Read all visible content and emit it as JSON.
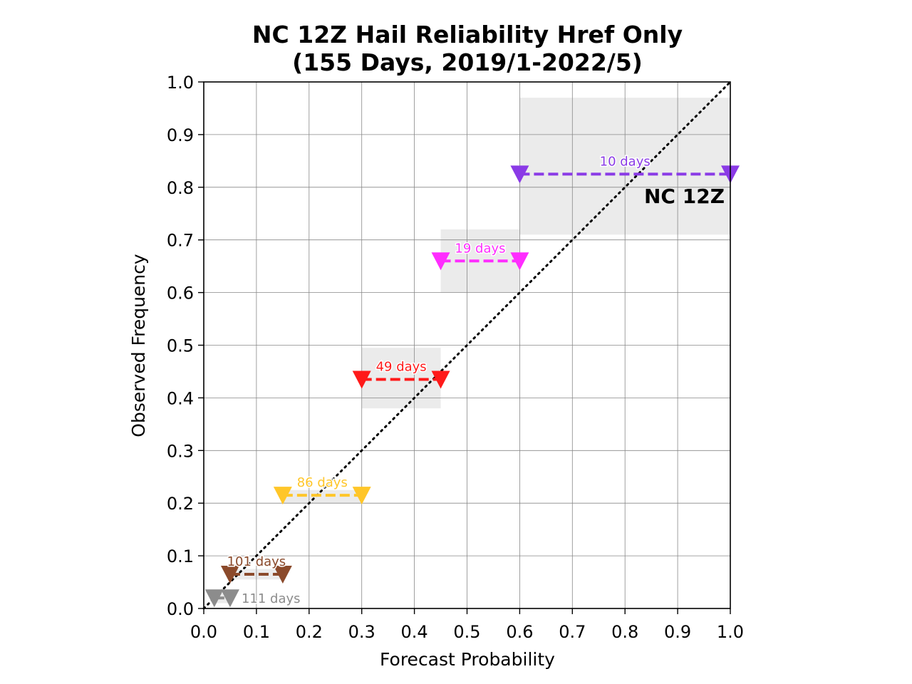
{
  "chart_data": {
    "type": "line",
    "title": "NC 12Z Hail Reliability Href Only",
    "subtitle": "(155 Days, 2019/1-2022/5)",
    "xlabel": "Forecast Probability",
    "ylabel": "Observed Frequency",
    "xlim": [
      0,
      1
    ],
    "ylim": [
      0,
      1
    ],
    "xticks": [
      "0.0",
      "0.1",
      "0.2",
      "0.3",
      "0.4",
      "0.5",
      "0.6",
      "0.7",
      "0.8",
      "0.9",
      "1.0"
    ],
    "yticks": [
      "0.0",
      "0.1",
      "0.2",
      "0.3",
      "0.4",
      "0.5",
      "0.6",
      "0.7",
      "0.8",
      "0.9",
      "1.0"
    ],
    "grid": true,
    "region_label": "NC 12Z",
    "reference_line": {
      "x": [
        0,
        1
      ],
      "y": [
        0,
        1
      ],
      "style": "dotted",
      "color": "#000000"
    },
    "bins": [
      {
        "x_start": 0.02,
        "x_end": 0.05,
        "y": 0.02,
        "ci_low": 0.01,
        "ci_high": 0.03,
        "label": "111 days",
        "color": "#8c8c8c"
      },
      {
        "x_start": 0.05,
        "x_end": 0.15,
        "y": 0.065,
        "ci_low": 0.055,
        "ci_high": 0.075,
        "label": "101 days",
        "color": "#8b4a2b"
      },
      {
        "x_start": 0.15,
        "x_end": 0.3,
        "y": 0.215,
        "ci_low": 0.2,
        "ci_high": 0.225,
        "label": "86 days",
        "color": "#ffc629"
      },
      {
        "x_start": 0.3,
        "x_end": 0.45,
        "y": 0.435,
        "ci_low": 0.38,
        "ci_high": 0.495,
        "label": "49 days",
        "color": "#ff1a1a"
      },
      {
        "x_start": 0.45,
        "x_end": 0.6,
        "y": 0.66,
        "ci_low": 0.6,
        "ci_high": 0.72,
        "label": "19 days",
        "color": "#ff2dff"
      },
      {
        "x_start": 0.6,
        "x_end": 1.0,
        "y": 0.825,
        "ci_low": 0.71,
        "ci_high": 0.97,
        "label": "10 days",
        "color": "#8a3ae6"
      }
    ]
  }
}
